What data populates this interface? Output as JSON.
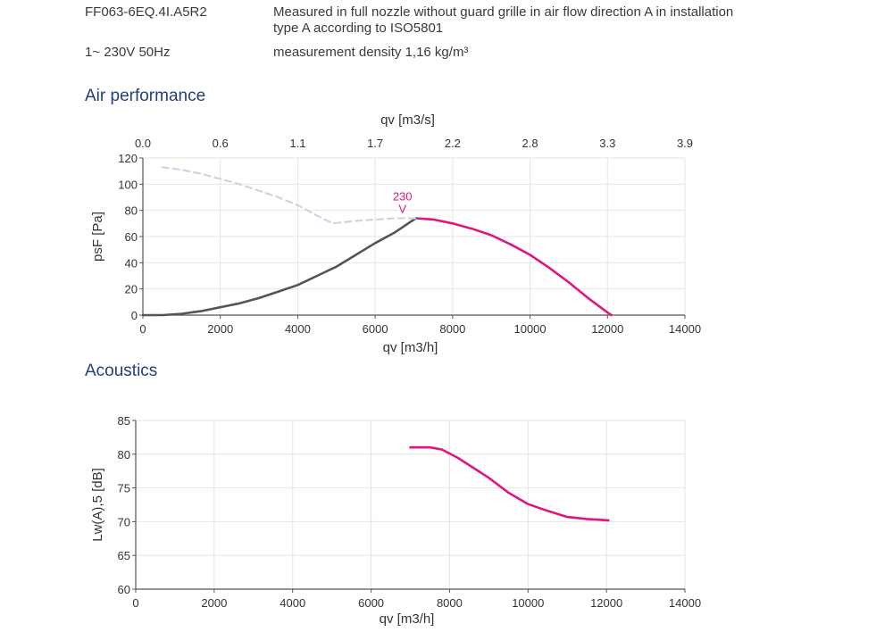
{
  "header": {
    "model": "FF063-6EQ.4I.A5R2",
    "measurement_desc": "Measured in full nozzle without guard grille in air flow direction A in installation type A according to ISO5801",
    "measurement_desc_line1": "Measured in full nozzle without guard grille in air flow direction A in installation",
    "measurement_desc_line2": "type A according to ISO5801",
    "supply": "1~ 230V 50Hz",
    "density": "measurement density 1,16 kg/m³"
  },
  "sections": {
    "air_performance": "Air performance",
    "acoustics": "Acoustics"
  },
  "colors": {
    "magenta": "#e0157f",
    "dark_curve": "#555555",
    "dashed_curve": "#c9d6e4",
    "grid": "#e4e4e4",
    "title_blue": "#1f3f82"
  },
  "chart_data": [
    {
      "type": "line",
      "title": "Air performance",
      "xlabel": "qv [m3/h]",
      "ylabel": "psF [Pa]",
      "x2label": "qv [m3/s]",
      "xlim": [
        0,
        14000
      ],
      "ylim": [
        0,
        120
      ],
      "xticks": [
        0,
        2000,
        4000,
        6000,
        8000,
        10000,
        12000,
        14000
      ],
      "yticks": [
        0,
        20,
        40,
        60,
        80,
        100,
        120
      ],
      "x2ticks": [
        "0.0",
        "0.6",
        "1.1",
        "1.7",
        "2.2",
        "2.8",
        "3.3",
        "3.9"
      ],
      "grid": true,
      "series": [
        {
          "name": "230 V",
          "color": "#e0157f",
          "style": "solid",
          "x": [
            7050,
            7500,
            8000,
            8500,
            9000,
            9500,
            10000,
            10500,
            11000,
            11500,
            12000,
            12100
          ],
          "y": [
            74,
            73,
            70,
            66,
            61,
            54,
            46,
            36,
            25,
            13,
            2,
            0
          ]
        },
        {
          "color": "#555555",
          "style": "solid",
          "x": [
            0,
            500,
            1000,
            1500,
            2000,
            2500,
            3000,
            3500,
            4000,
            4500,
            5000,
            5500,
            6000,
            6500,
            7050
          ],
          "y": [
            0,
            0,
            1,
            3,
            6,
            9,
            13,
            18,
            23,
            30,
            37,
            46,
            55,
            63,
            74
          ]
        },
        {
          "color": "#c9d6e4",
          "style": "dashed",
          "x": [
            500,
            1000,
            1500,
            2000,
            2500,
            3000,
            3500,
            4000,
            4500,
            4900,
            5500,
            6000,
            6500,
            7050
          ],
          "y": [
            113,
            111,
            108,
            104,
            100,
            95,
            90,
            84,
            76,
            70,
            72,
            73,
            74,
            74
          ]
        }
      ],
      "annotation": "230 V",
      "annotation_line1": "230",
      "annotation_line2": "V"
    },
    {
      "type": "line",
      "title": "Acoustics",
      "xlabel": "qv [m3/h]",
      "ylabel": "Lw(A),5 [dB]",
      "xlim": [
        0,
        14000
      ],
      "ylim": [
        60,
        85
      ],
      "xticks": [
        0,
        2000,
        4000,
        6000,
        8000,
        10000,
        12000,
        14000
      ],
      "yticks": [
        60,
        65,
        70,
        75,
        80,
        85
      ],
      "grid": true,
      "series": [
        {
          "color": "#e0157f",
          "style": "solid",
          "x": [
            7000,
            7500,
            7800,
            8200,
            8600,
            9000,
            9500,
            10000,
            10500,
            11000,
            11500,
            12050
          ],
          "y": [
            81,
            81,
            80.7,
            79.5,
            78,
            76.5,
            74.3,
            72.6,
            71.6,
            70.7,
            70.4,
            70.2
          ]
        }
      ]
    }
  ]
}
